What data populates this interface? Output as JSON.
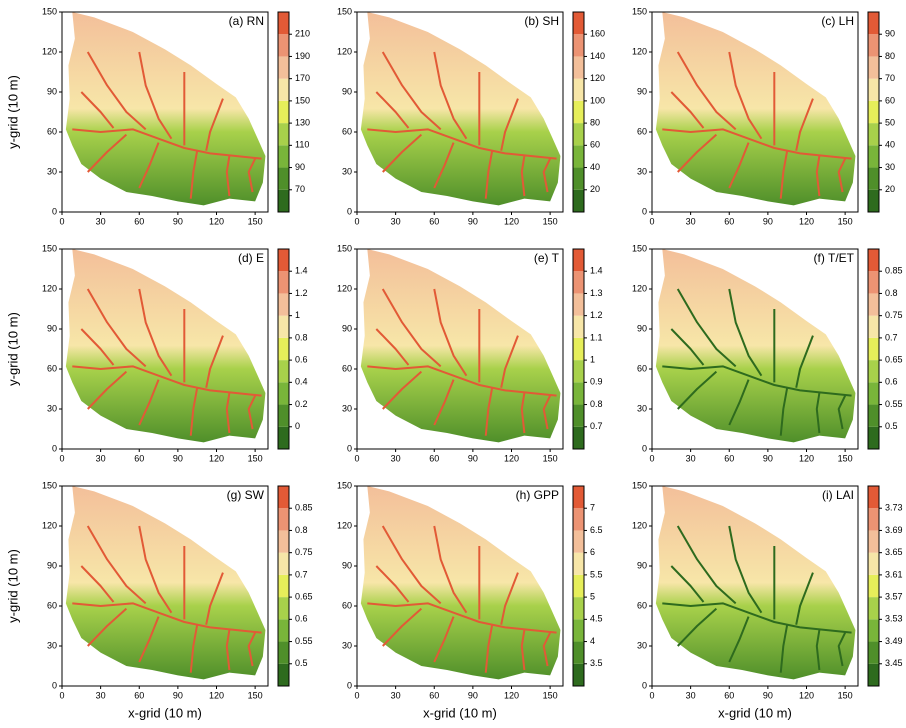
{
  "chart_data": [
    {
      "type": "map",
      "title": "(a) RN",
      "ylabel": "y-grid (10 m)",
      "xlim": [
        0,
        160
      ],
      "ylim": [
        0,
        150
      ],
      "xticks": [
        0,
        30,
        60,
        90,
        120,
        150
      ],
      "yticks": [
        0,
        30,
        60,
        90,
        120,
        150
      ],
      "clim": [
        50,
        230
      ],
      "colorbar_ticks": [
        70,
        90,
        110,
        130,
        150,
        170,
        190,
        210
      ],
      "colors": [
        "#2e6b1e",
        "#4f8f2a",
        "#79b53a",
        "#a8d14b",
        "#e6ee5a",
        "#f7e6a8",
        "#f3bf9a",
        "#ec9373",
        "#e25a36"
      ]
    },
    {
      "type": "map",
      "title": "(b) SH",
      "xlim": [
        0,
        160
      ],
      "ylim": [
        0,
        150
      ],
      "xticks": [
        0,
        30,
        60,
        90,
        120,
        150
      ],
      "yticks": [
        0,
        30,
        60,
        90,
        120,
        150
      ],
      "clim": [
        0,
        180
      ],
      "colorbar_ticks": [
        20,
        40,
        60,
        80,
        100,
        120,
        140,
        160
      ],
      "colors": [
        "#2e6b1e",
        "#4f8f2a",
        "#79b53a",
        "#a8d14b",
        "#e6ee5a",
        "#f7e6a8",
        "#f3bf9a",
        "#ec9373",
        "#e25a36"
      ]
    },
    {
      "type": "map",
      "title": "(c) LH",
      "xlim": [
        0,
        160
      ],
      "ylim": [
        0,
        150
      ],
      "xticks": [
        0,
        30,
        60,
        90,
        120,
        150
      ],
      "yticks": [
        0,
        30,
        60,
        90,
        120,
        150
      ],
      "clim": [
        10,
        100
      ],
      "colorbar_ticks": [
        20,
        30,
        40,
        50,
        60,
        70,
        80,
        90
      ],
      "colors": [
        "#2e6b1e",
        "#4f8f2a",
        "#79b53a",
        "#a8d14b",
        "#e6ee5a",
        "#f7e6a8",
        "#f3bf9a",
        "#ec9373",
        "#e25a36"
      ]
    },
    {
      "type": "map",
      "title": "(d) E",
      "ylabel": "y-grid (10 m)",
      "xlim": [
        0,
        160
      ],
      "ylim": [
        0,
        150
      ],
      "xticks": [
        0,
        30,
        60,
        90,
        120,
        150
      ],
      "yticks": [
        0,
        30,
        60,
        90,
        120,
        150
      ],
      "clim": [
        -0.2,
        1.6
      ],
      "colorbar_ticks": [
        0,
        0.2,
        0.4,
        0.6,
        0.8,
        1,
        1.2,
        1.4
      ],
      "colors": [
        "#2e6b1e",
        "#4f8f2a",
        "#79b53a",
        "#a8d14b",
        "#e6ee5a",
        "#f7e6a8",
        "#f3bf9a",
        "#ec9373",
        "#e25a36"
      ]
    },
    {
      "type": "map",
      "title": "(e) T",
      "xlim": [
        0,
        160
      ],
      "ylim": [
        0,
        150
      ],
      "xticks": [
        0,
        30,
        60,
        90,
        120,
        150
      ],
      "yticks": [
        0,
        30,
        60,
        90,
        120,
        150
      ],
      "clim": [
        0.6,
        1.5
      ],
      "colorbar_ticks": [
        0.7,
        0.8,
        0.9,
        1,
        1.1,
        1.2,
        1.3,
        1.4
      ],
      "colors": [
        "#2e6b1e",
        "#4f8f2a",
        "#79b53a",
        "#a8d14b",
        "#e6ee5a",
        "#f7e6a8",
        "#f3bf9a",
        "#ec9373",
        "#e25a36"
      ]
    },
    {
      "type": "map",
      "title": "(f) T/ET",
      "xlim": [
        0,
        160
      ],
      "ylim": [
        0,
        150
      ],
      "xticks": [
        0,
        30,
        60,
        90,
        120,
        150
      ],
      "yticks": [
        0,
        30,
        60,
        90,
        120,
        150
      ],
      "clim": [
        0.45,
        0.9
      ],
      "colorbar_ticks": [
        0.5,
        0.55,
        0.6,
        0.65,
        0.7,
        0.75,
        0.8,
        0.85
      ],
      "colors": [
        "#2e6b1e",
        "#4f8f2a",
        "#79b53a",
        "#a8d14b",
        "#e6ee5a",
        "#f7e6a8",
        "#f3bf9a",
        "#ec9373",
        "#e25a36"
      ]
    },
    {
      "type": "map",
      "title": "(g) SW",
      "xlabel": "x-grid (10 m)",
      "ylabel": "y-grid (10 m)",
      "xlim": [
        0,
        160
      ],
      "ylim": [
        0,
        150
      ],
      "xticks": [
        0,
        30,
        60,
        90,
        120,
        150
      ],
      "yticks": [
        0,
        30,
        60,
        90,
        120,
        150
      ],
      "clim": [
        0.45,
        0.9
      ],
      "colorbar_ticks": [
        0.5,
        0.55,
        0.6,
        0.65,
        0.7,
        0.75,
        0.8,
        0.85
      ],
      "colors": [
        "#2e6b1e",
        "#4f8f2a",
        "#79b53a",
        "#a8d14b",
        "#e6ee5a",
        "#f7e6a8",
        "#f3bf9a",
        "#ec9373",
        "#e25a36"
      ]
    },
    {
      "type": "map",
      "title": "(h) GPP",
      "xlabel": "x-grid (10 m)",
      "xlim": [
        0,
        160
      ],
      "ylim": [
        0,
        150
      ],
      "xticks": [
        0,
        30,
        60,
        90,
        120,
        150
      ],
      "yticks": [
        0,
        30,
        60,
        90,
        120,
        150
      ],
      "clim": [
        3,
        7.5
      ],
      "colorbar_ticks": [
        3.5,
        4,
        4.5,
        5,
        5.5,
        6,
        6.5,
        7
      ],
      "colors": [
        "#2e6b1e",
        "#4f8f2a",
        "#79b53a",
        "#a8d14b",
        "#e6ee5a",
        "#f7e6a8",
        "#f3bf9a",
        "#ec9373",
        "#e25a36"
      ]
    },
    {
      "type": "map",
      "title": "(i) LAI",
      "xlabel": "x-grid (10 m)",
      "xlim": [
        0,
        160
      ],
      "ylim": [
        0,
        150
      ],
      "xticks": [
        0,
        30,
        60,
        90,
        120,
        150
      ],
      "yticks": [
        0,
        30,
        60,
        90,
        120,
        150
      ],
      "clim": [
        3.41,
        3.77
      ],
      "colorbar_ticks": [
        3.45,
        3.49,
        3.53,
        3.57,
        3.61,
        3.65,
        3.69,
        3.73
      ],
      "colors": [
        "#2e6b1e",
        "#4f8f2a",
        "#79b53a",
        "#a8d14b",
        "#e6ee5a",
        "#f7e6a8",
        "#f3bf9a",
        "#ec9373",
        "#e25a36"
      ]
    }
  ]
}
